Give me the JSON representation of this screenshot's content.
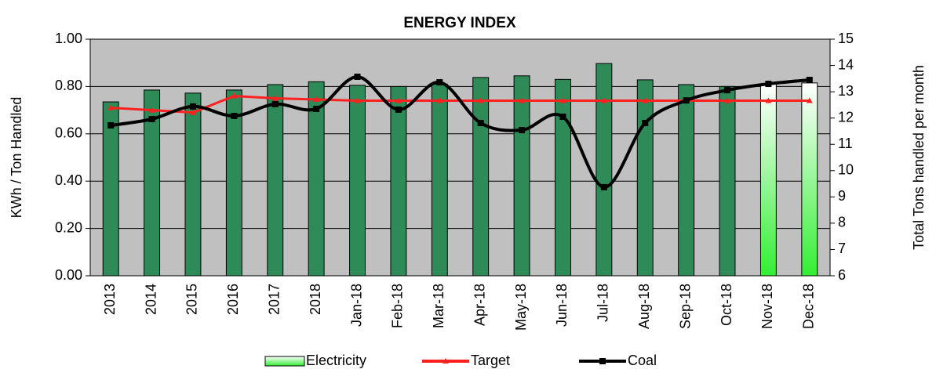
{
  "chart_data": {
    "type": "bar_line",
    "title": "ENERGY INDEX",
    "y_label": "KWh / Ton Handled",
    "y2_label": "Total Tons handled per month",
    "categories": [
      "2013",
      "2014",
      "2015",
      "2016",
      "2017",
      "2018",
      "Jan-18",
      "Feb-18",
      "Mar-18",
      "Apr-18",
      "May-18",
      "Jun-18",
      "Jul-18",
      "Aug-18",
      "Sep-18",
      "Oct-18",
      "Nov-18",
      "Dec-18"
    ],
    "series": [
      {
        "name": "Electricity",
        "type": "bar",
        "color": "#2e8b57",
        "colors": [
          "#2e8b57",
          "#2e8b57",
          "#2e8b57",
          "#2e8b57",
          "#2e8b57",
          "#2e8b57",
          "#2e8b57",
          "#2e8b57",
          "#2e8b57",
          "#2e8b57",
          "#2e8b57",
          "#2e8b57",
          "#2e8b57",
          "#2e8b57",
          "#2e8b57",
          "#2e8b57",
          "#33ee33",
          "#33ee33"
        ],
        "values": [
          0.735,
          0.785,
          0.772,
          0.785,
          0.808,
          0.82,
          0.805,
          0.8,
          0.81,
          0.838,
          0.845,
          0.83,
          0.897,
          0.828,
          0.808,
          0.8,
          0.81,
          0.815
        ]
      },
      {
        "name": "Target",
        "type": "line",
        "color": "#ff2020",
        "values": [
          0.71,
          0.7,
          0.69,
          0.76,
          0.75,
          0.745,
          0.74,
          0.74,
          0.74,
          0.74,
          0.74,
          0.74,
          0.74,
          0.74,
          0.74,
          0.74,
          0.74,
          0.74
        ]
      },
      {
        "name": "Coal",
        "type": "line",
        "smooth": true,
        "axis": "y2",
        "color": "#000000",
        "values": [
          11.72,
          11.96,
          12.44,
          12.08,
          12.53,
          12.35,
          13.57,
          12.32,
          13.36,
          11.81,
          11.54,
          12.05,
          9.37,
          11.81,
          12.67,
          13.06,
          13.3,
          13.45
        ]
      }
    ],
    "ylim": [
      0,
      1
    ],
    "yticks": [
      {
        "value": 0,
        "label": "0.00"
      },
      {
        "value": 0.2,
        "label": "0.20"
      },
      {
        "value": 0.4,
        "label": "0.40"
      },
      {
        "value": 0.6,
        "label": "0.60"
      },
      {
        "value": 0.8,
        "label": "0.80"
      },
      {
        "value": 1,
        "label": "1.00"
      }
    ],
    "y2lim": [
      6,
      15
    ],
    "y2ticks": [
      6,
      7,
      8,
      9,
      10,
      11,
      12,
      13,
      14,
      15
    ],
    "grid": true,
    "plot_background": "#c0c0c0",
    "legend": "bottom"
  }
}
